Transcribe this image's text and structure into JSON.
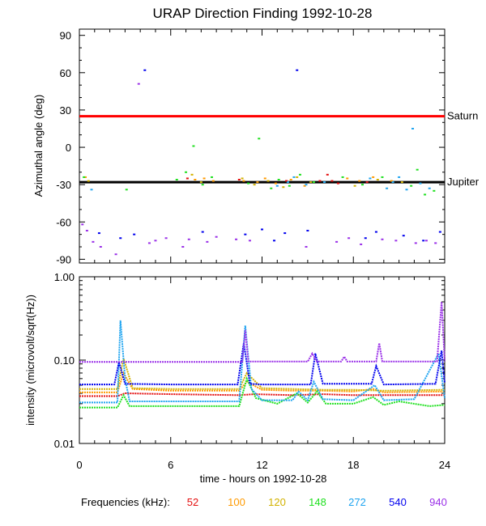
{
  "title": "URAP Direction Finding  1992-10-28",
  "xlabel": "time - hours on 1992-10-28",
  "legend": {
    "label": "Frequencies (kHz):",
    "items": [
      {
        "name": "52",
        "color": "#e41010"
      },
      {
        "name": "100",
        "color": "#ff9a00"
      },
      {
        "name": "120",
        "color": "#d2b200"
      },
      {
        "name": "148",
        "color": "#1fe01f"
      },
      {
        "name": "272",
        "color": "#1ea4f0"
      },
      {
        "name": "540",
        "color": "#0000ee"
      },
      {
        "name": "940",
        "color": "#9a30e8"
      }
    ]
  },
  "chart_data": [
    {
      "type": "scatter",
      "ylabel": "Azimuthal angle (deg)",
      "xlim": [
        0,
        24
      ],
      "ylim": [
        -93,
        95
      ],
      "x_ticks": [
        "0",
        "6",
        "12",
        "18",
        "24"
      ],
      "y_ticks": [
        "90",
        "60",
        "30",
        "0",
        "-30",
        "-60",
        "-90"
      ],
      "reference_lines": [
        {
          "label": "Saturn",
          "y": 25,
          "color": "#ff0000"
        },
        {
          "label": "Jupiter",
          "y": -28,
          "color": "#000000"
        }
      ],
      "series": [
        {
          "name": "52",
          "points": [
            [
              7.1,
              -25
            ],
            [
              10.5,
              -26
            ],
            [
              13.6,
              -27
            ],
            [
              15.8,
              -27
            ],
            [
              16.3,
              -22
            ],
            [
              16.6,
              -27
            ],
            [
              17.0,
              -29
            ],
            [
              18.9,
              -28
            ]
          ]
        },
        {
          "name": "100",
          "points": [
            [
              0.4,
              -24
            ],
            [
              7.6,
              -26
            ],
            [
              8.2,
              -25
            ],
            [
              8.8,
              -27
            ],
            [
              10.8,
              -27
            ],
            [
              11.7,
              -28
            ],
            [
              12.2,
              -25
            ],
            [
              12.9,
              -29
            ],
            [
              13.9,
              -26
            ],
            [
              14.8,
              -31
            ],
            [
              17.6,
              -25
            ],
            [
              18.4,
              -27
            ],
            [
              19.3,
              -24
            ],
            [
              20.5,
              -27
            ]
          ]
        },
        {
          "name": "120",
          "points": [
            [
              0.6,
              -27
            ],
            [
              7.4,
              -22
            ],
            [
              8.0,
              -28
            ],
            [
              10.7,
              -25
            ],
            [
              11.5,
              -30
            ],
            [
              12.4,
              -27
            ],
            [
              13.4,
              -32
            ],
            [
              14.3,
              -24
            ],
            [
              15.2,
              -28
            ],
            [
              18.1,
              -31
            ],
            [
              19.6,
              -26
            ],
            [
              21.2,
              -28
            ]
          ]
        },
        {
          "name": "148",
          "points": [
            [
              0.3,
              -24
            ],
            [
              3.1,
              -34
            ],
            [
              6.4,
              -26
            ],
            [
              7.0,
              -20
            ],
            [
              7.5,
              1
            ],
            [
              8.1,
              -30
            ],
            [
              8.7,
              -24
            ],
            [
              11.1,
              -29
            ],
            [
              11.8,
              7
            ],
            [
              12.6,
              -33
            ],
            [
              13.1,
              -26
            ],
            [
              13.8,
              -31
            ],
            [
              14.5,
              -22
            ],
            [
              15.4,
              -28
            ],
            [
              17.3,
              -24
            ],
            [
              18.6,
              -30
            ],
            [
              19.9,
              -24
            ],
            [
              21.8,
              -31
            ],
            [
              22.2,
              -18
            ],
            [
              22.7,
              -38
            ],
            [
              23.3,
              -35
            ]
          ]
        },
        {
          "name": "272",
          "points": [
            [
              0.8,
              -34
            ],
            [
              13.0,
              -31
            ],
            [
              13.7,
              -28
            ],
            [
              14.1,
              -24
            ],
            [
              14.9,
              -30
            ],
            [
              16.1,
              -28
            ],
            [
              19.1,
              -25
            ],
            [
              20.2,
              -33
            ],
            [
              20.6,
              -28
            ],
            [
              21.0,
              -24
            ],
            [
              21.5,
              -34
            ],
            [
              21.9,
              15
            ],
            [
              22.4,
              -29
            ],
            [
              23.0,
              -33
            ]
          ]
        },
        {
          "name": "540",
          "points": [
            [
              1.3,
              -69
            ],
            [
              2.7,
              -73
            ],
            [
              3.6,
              -70
            ],
            [
              4.3,
              62
            ],
            [
              8.1,
              -68
            ],
            [
              10.9,
              -70
            ],
            [
              12.0,
              -66
            ],
            [
              12.8,
              -75
            ],
            [
              13.5,
              -69
            ],
            [
              14.3,
              62
            ],
            [
              15.0,
              -67
            ],
            [
              18.8,
              -73
            ],
            [
              19.5,
              -68
            ],
            [
              21.3,
              -71
            ],
            [
              22.6,
              -75
            ],
            [
              23.7,
              -68
            ]
          ]
        },
        {
          "name": "940",
          "points": [
            [
              0.2,
              -62
            ],
            [
              0.5,
              -67
            ],
            [
              0.9,
              -76
            ],
            [
              1.4,
              -80
            ],
            [
              2.4,
              -86
            ],
            [
              3.9,
              51
            ],
            [
              4.6,
              -77
            ],
            [
              5.0,
              -75
            ],
            [
              5.7,
              -73
            ],
            [
              6.8,
              -80
            ],
            [
              7.2,
              -74
            ],
            [
              8.4,
              -76
            ],
            [
              9.0,
              -72
            ],
            [
              10.3,
              -74
            ],
            [
              11.2,
              -75
            ],
            [
              14.9,
              -80
            ],
            [
              16.9,
              -76
            ],
            [
              17.7,
              -73
            ],
            [
              18.5,
              -78
            ],
            [
              19.9,
              -74
            ],
            [
              20.8,
              -75
            ],
            [
              22.1,
              -77
            ],
            [
              22.8,
              -75
            ],
            [
              23.4,
              -77
            ]
          ]
        }
      ]
    },
    {
      "type": "line",
      "ylabel": "intensity (microvolt/sqrt(Hz))",
      "xlim": [
        0,
        24
      ],
      "ylim": [
        0.01,
        1.0
      ],
      "yscale": "log",
      "x_ticks": [
        "0",
        "6",
        "12",
        "18",
        "24"
      ],
      "y_ticks": [
        "1.00",
        "0.10",
        "0.01"
      ],
      "series": [
        {
          "name": "52",
          "x": [
            0,
            2.5,
            3,
            6,
            10.5,
            11.5,
            14,
            16,
            18,
            20,
            24
          ],
          "y": [
            0.037,
            0.037,
            0.04,
            0.039,
            0.038,
            0.039,
            0.038,
            0.039,
            0.038,
            0.038,
            0.038
          ]
        },
        {
          "name": "100",
          "x": [
            0,
            2.5,
            2.9,
            3.5,
            6,
            10.5,
            11,
            12,
            14,
            16,
            18,
            19.3,
            20,
            24
          ],
          "y": [
            0.041,
            0.041,
            0.07,
            0.045,
            0.043,
            0.043,
            0.055,
            0.044,
            0.043,
            0.043,
            0.042,
            0.045,
            0.041,
            0.042
          ]
        },
        {
          "name": "120",
          "x": [
            0,
            2.5,
            2.9,
            3.5,
            6,
            10.5,
            11,
            12,
            14,
            16,
            18,
            20,
            24
          ],
          "y": [
            0.045,
            0.045,
            0.105,
            0.046,
            0.045,
            0.045,
            0.07,
            0.046,
            0.045,
            0.044,
            0.044,
            0.043,
            0.044
          ]
        },
        {
          "name": "148",
          "x": [
            0,
            2.5,
            2.9,
            3.3,
            6,
            10.5,
            11,
            11.6,
            13,
            14.3,
            15,
            15.6,
            16.2,
            18,
            19.3,
            20,
            21,
            23,
            24
          ],
          "y": [
            0.027,
            0.027,
            0.038,
            0.028,
            0.028,
            0.028,
            0.06,
            0.035,
            0.03,
            0.04,
            0.031,
            0.042,
            0.03,
            0.03,
            0.036,
            0.029,
            0.032,
            0.028,
            0.029
          ]
        },
        {
          "name": "272",
          "x": [
            0,
            2.5,
            2.7,
            3.0,
            3.3,
            6,
            10.5,
            10.9,
            11.3,
            12,
            14,
            14.4,
            15,
            15.4,
            16,
            18,
            19.4,
            20,
            22,
            23.6,
            24
          ],
          "y": [
            0.031,
            0.031,
            0.3,
            0.06,
            0.032,
            0.032,
            0.032,
            0.26,
            0.045,
            0.033,
            0.033,
            0.042,
            0.033,
            0.055,
            0.034,
            0.033,
            0.05,
            0.033,
            0.034,
            0.12,
            0.035
          ]
        },
        {
          "name": "540",
          "x": [
            0,
            2.3,
            2.6,
            3.0,
            6,
            10.4,
            10.8,
            11.2,
            12,
            15.2,
            15.5,
            16,
            19.2,
            19.5,
            20,
            23.4,
            23.8,
            24
          ],
          "y": [
            0.051,
            0.051,
            0.095,
            0.052,
            0.051,
            0.051,
            0.16,
            0.052,
            0.051,
            0.051,
            0.12,
            0.052,
            0.052,
            0.085,
            0.051,
            0.052,
            0.13,
            0.053
          ]
        },
        {
          "name": "940",
          "x": [
            0,
            10.7,
            10.9,
            11.1,
            15,
            15.3,
            15.6,
            17.2,
            17.4,
            17.6,
            19.5,
            19.7,
            19.9,
            23.5,
            23.8,
            24
          ],
          "y": [
            0.095,
            0.095,
            0.23,
            0.096,
            0.096,
            0.12,
            0.096,
            0.096,
            0.11,
            0.096,
            0.096,
            0.16,
            0.096,
            0.096,
            0.5,
            0.097
          ]
        }
      ]
    }
  ]
}
